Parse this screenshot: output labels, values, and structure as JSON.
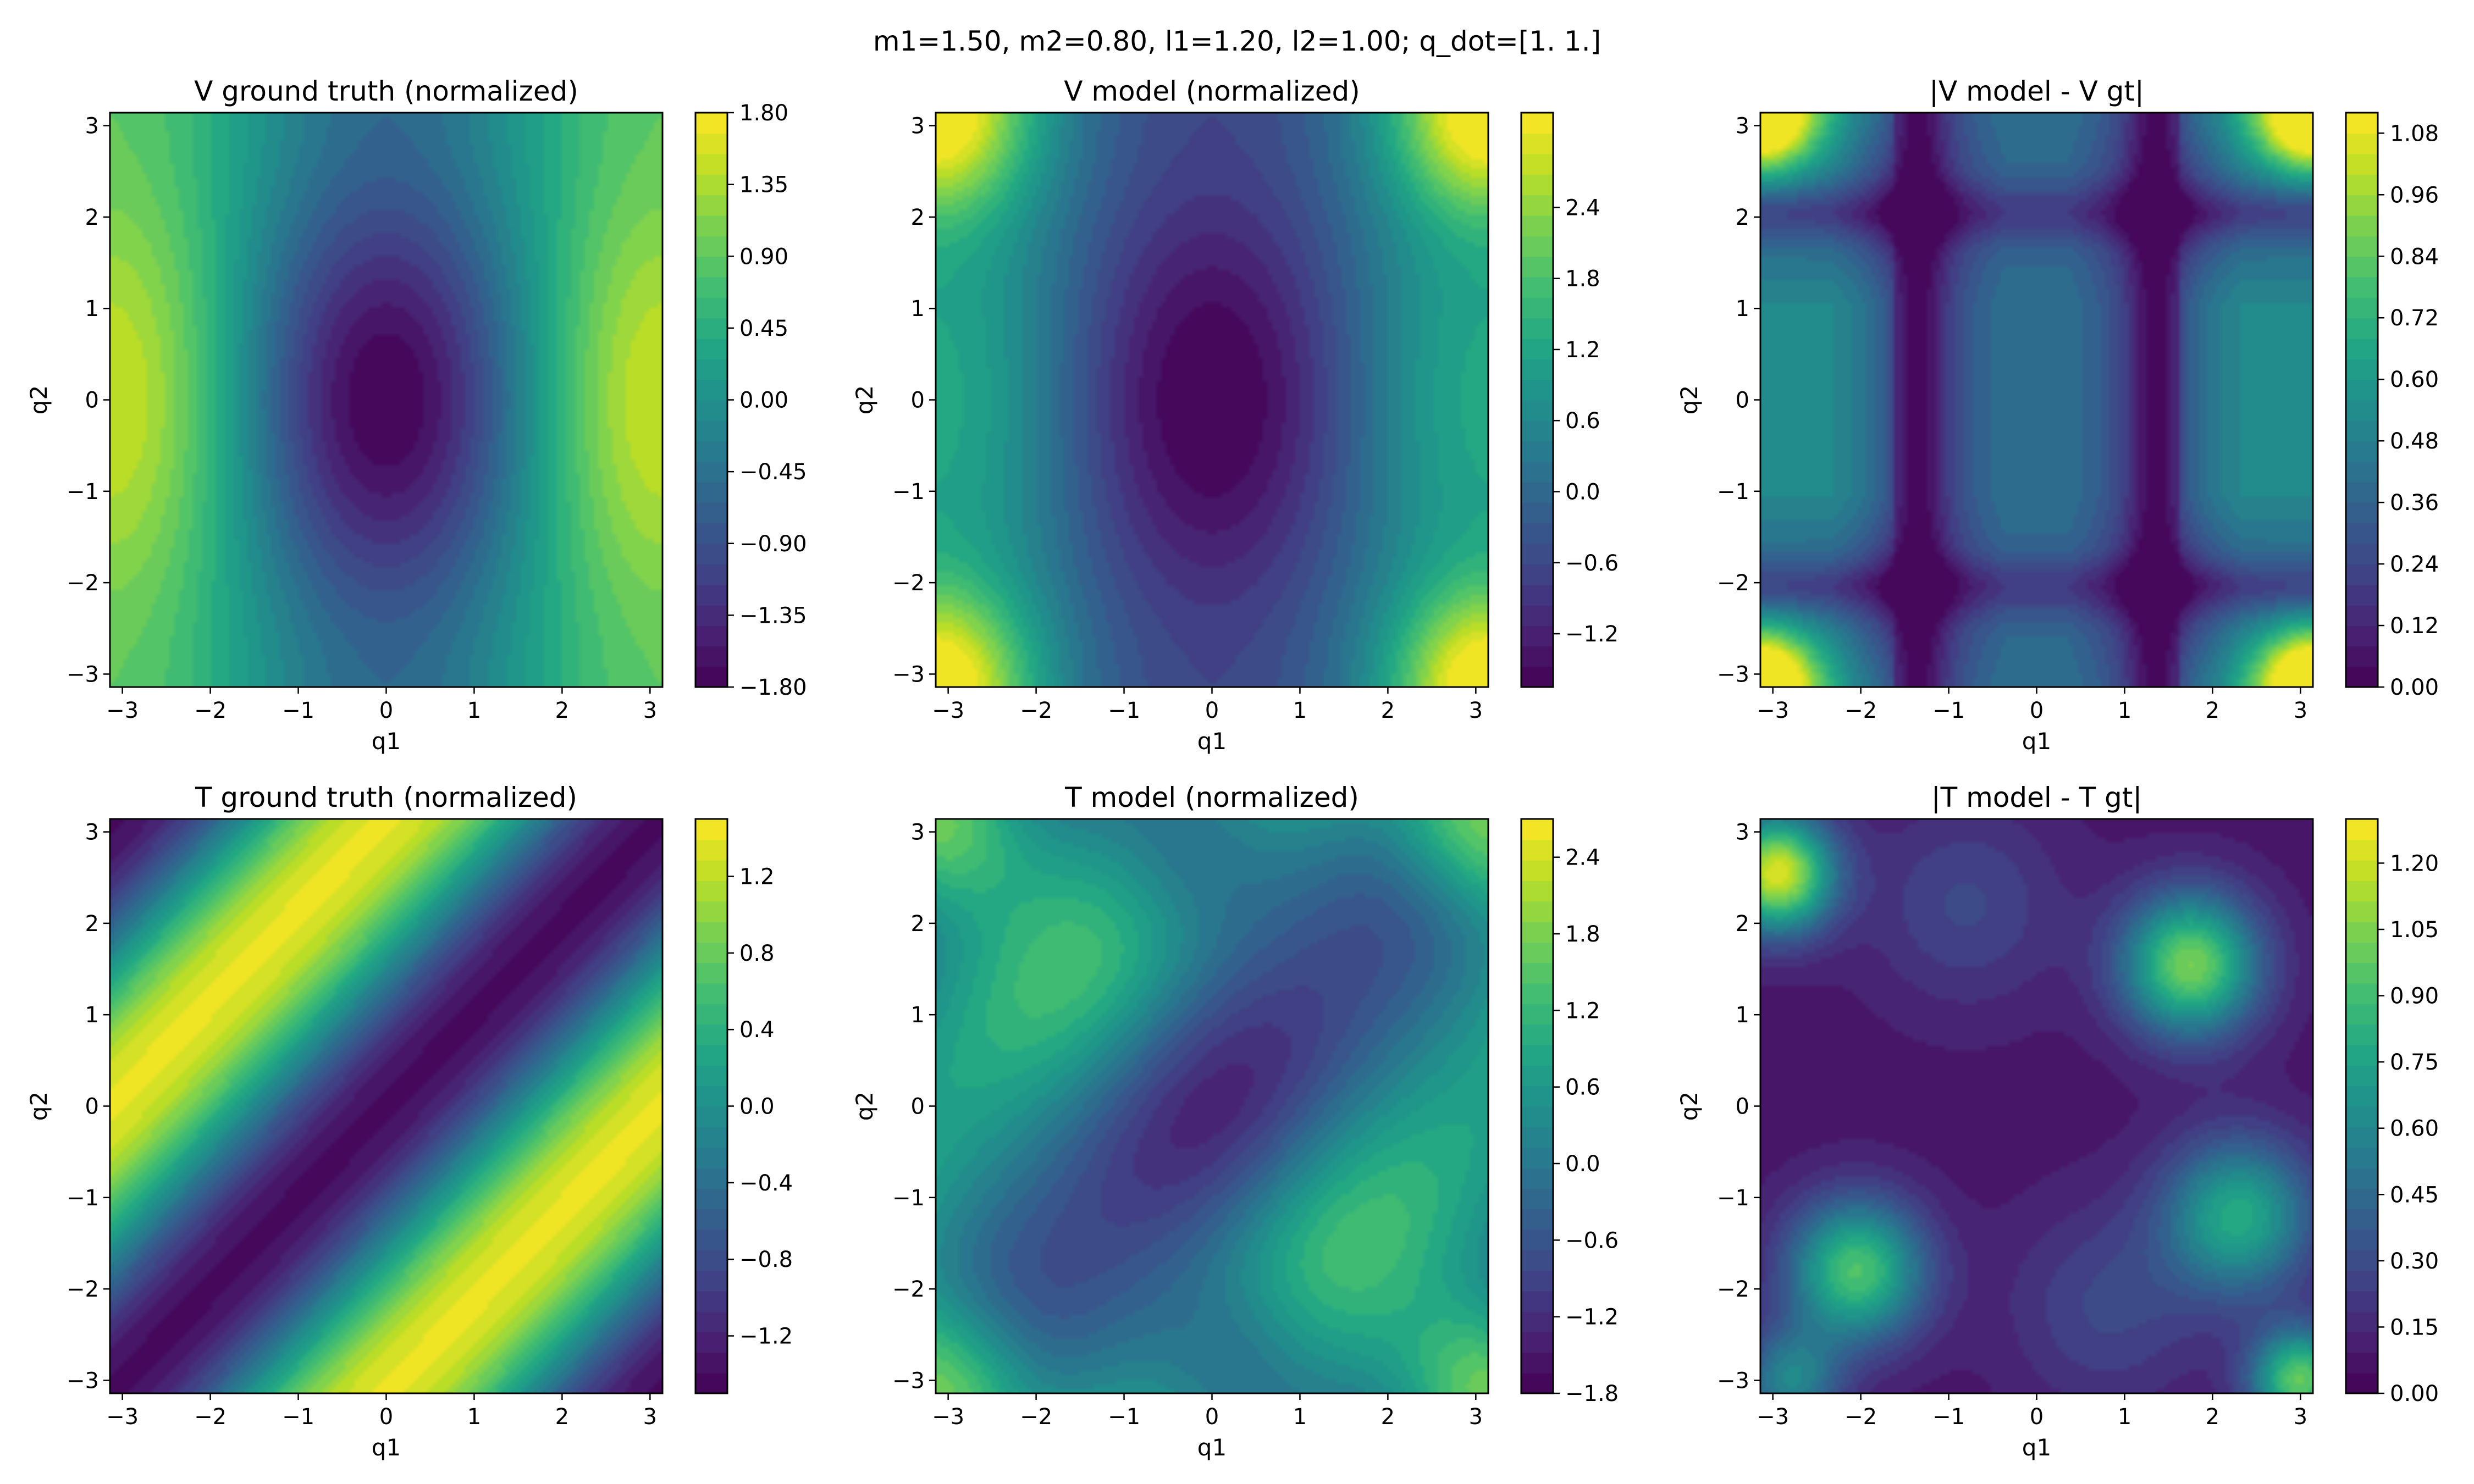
{
  "suptitle": "m1=1.50, m2=0.80, l1=1.20, l2=1.00; q_dot=[1. 1.]",
  "colormap": "viridis",
  "chart_data": [
    {
      "id": "v_gt",
      "type": "heatmap",
      "style": "filled-contour",
      "title": "V ground truth (normalized)",
      "xlabel": "q1",
      "ylabel": "q2",
      "xlim": [
        -3.14159,
        3.14159
      ],
      "ylim": [
        -3.14159,
        3.14159
      ],
      "x_ticks": [
        "−3",
        "−2",
        "−1",
        "0",
        "1",
        "2",
        "3"
      ],
      "y_ticks": [
        "−3",
        "−2",
        "−1",
        "0",
        "1",
        "2",
        "3"
      ],
      "colorbar": {
        "range": [
          -1.8,
          1.8
        ],
        "ticks": [
          -1.8,
          -1.35,
          -0.9,
          -0.45,
          0.0,
          0.45,
          0.9,
          1.35,
          1.8
        ],
        "tick_labels": [
          "−1.80",
          "−1.35",
          "−0.90",
          "−0.45",
          "0.00",
          "0.45",
          "0.90",
          "1.35",
          "1.80"
        ]
      }
    },
    {
      "id": "v_model",
      "type": "heatmap",
      "style": "filled-contour",
      "title": "V model (normalized)",
      "xlabel": "q1",
      "ylabel": "q2",
      "xlim": [
        -3.14159,
        3.14159
      ],
      "ylim": [
        -3.14159,
        3.14159
      ],
      "x_ticks": [
        "−3",
        "−2",
        "−1",
        "0",
        "1",
        "2",
        "3"
      ],
      "y_ticks": [
        "−3",
        "−2",
        "−1",
        "0",
        "1",
        "2",
        "3"
      ],
      "colorbar": {
        "range": [
          -1.65,
          3.2
        ],
        "ticks": [
          -1.2,
          -0.6,
          0.0,
          0.6,
          1.2,
          1.8,
          2.4
        ],
        "tick_labels": [
          "−1.2",
          "−0.6",
          "0.0",
          "0.6",
          "1.2",
          "1.8",
          "2.4"
        ]
      }
    },
    {
      "id": "v_err",
      "type": "heatmap",
      "style": "filled-contour",
      "title": "|V model - V gt|",
      "xlabel": "q1",
      "ylabel": "q2",
      "xlim": [
        -3.14159,
        3.14159
      ],
      "ylim": [
        -3.14159,
        3.14159
      ],
      "x_ticks": [
        "−3",
        "−2",
        "−1",
        "0",
        "1",
        "2",
        "3"
      ],
      "y_ticks": [
        "−3",
        "−2",
        "−1",
        "0",
        "1",
        "2",
        "3"
      ],
      "colorbar": {
        "range": [
          0.0,
          1.12
        ],
        "ticks": [
          0.0,
          0.12,
          0.24,
          0.36,
          0.48,
          0.6,
          0.72,
          0.84,
          0.96,
          1.08
        ],
        "tick_labels": [
          "0.00",
          "0.12",
          "0.24",
          "0.36",
          "0.48",
          "0.60",
          "0.72",
          "0.84",
          "0.96",
          "1.08"
        ]
      }
    },
    {
      "id": "t_gt",
      "type": "heatmap",
      "style": "filled-contour",
      "title": "T ground truth (normalized)",
      "xlabel": "q1",
      "ylabel": "q2",
      "xlim": [
        -3.14159,
        3.14159
      ],
      "ylim": [
        -3.14159,
        3.14159
      ],
      "x_ticks": [
        "−3",
        "−2",
        "−1",
        "0",
        "1",
        "2",
        "3"
      ],
      "y_ticks": [
        "−3",
        "−2",
        "−1",
        "0",
        "1",
        "2",
        "3"
      ],
      "colorbar": {
        "range": [
          -1.5,
          1.5
        ],
        "ticks": [
          -1.2,
          -0.8,
          -0.4,
          0.0,
          0.4,
          0.8,
          1.2
        ],
        "tick_labels": [
          "−1.2",
          "−0.8",
          "−0.4",
          "0.0",
          "0.4",
          "0.8",
          "1.2"
        ]
      }
    },
    {
      "id": "t_model",
      "type": "heatmap",
      "style": "filled-contour",
      "title": "T model (normalized)",
      "xlabel": "q1",
      "ylabel": "q2",
      "xlim": [
        -3.14159,
        3.14159
      ],
      "ylim": [
        -3.14159,
        3.14159
      ],
      "x_ticks": [
        "−3",
        "−2",
        "−1",
        "0",
        "1",
        "2",
        "3"
      ],
      "y_ticks": [
        "−3",
        "−2",
        "−1",
        "0",
        "1",
        "2",
        "3"
      ],
      "colorbar": {
        "range": [
          -1.8,
          2.7
        ],
        "ticks": [
          -1.8,
          -1.2,
          -0.6,
          0.0,
          0.6,
          1.2,
          1.8,
          2.4
        ],
        "tick_labels": [
          "−1.8",
          "−1.2",
          "−0.6",
          "0.0",
          "0.6",
          "1.2",
          "1.8",
          "2.4"
        ]
      }
    },
    {
      "id": "t_err",
      "type": "heatmap",
      "style": "filled-contour",
      "title": "|T model - T gt|",
      "xlabel": "q1",
      "ylabel": "q2",
      "xlim": [
        -3.14159,
        3.14159
      ],
      "ylim": [
        -3.14159,
        3.14159
      ],
      "x_ticks": [
        "−3",
        "−2",
        "−1",
        "0",
        "1",
        "2",
        "3"
      ],
      "y_ticks": [
        "−3",
        "−2",
        "−1",
        "0",
        "1",
        "2",
        "3"
      ],
      "colorbar": {
        "range": [
          0.0,
          1.3
        ],
        "ticks": [
          0.0,
          0.15,
          0.3,
          0.45,
          0.6,
          0.75,
          0.9,
          1.05,
          1.2
        ],
        "tick_labels": [
          "0.00",
          "0.15",
          "0.30",
          "0.45",
          "0.60",
          "0.75",
          "0.90",
          "1.05",
          "1.20"
        ]
      }
    }
  ]
}
